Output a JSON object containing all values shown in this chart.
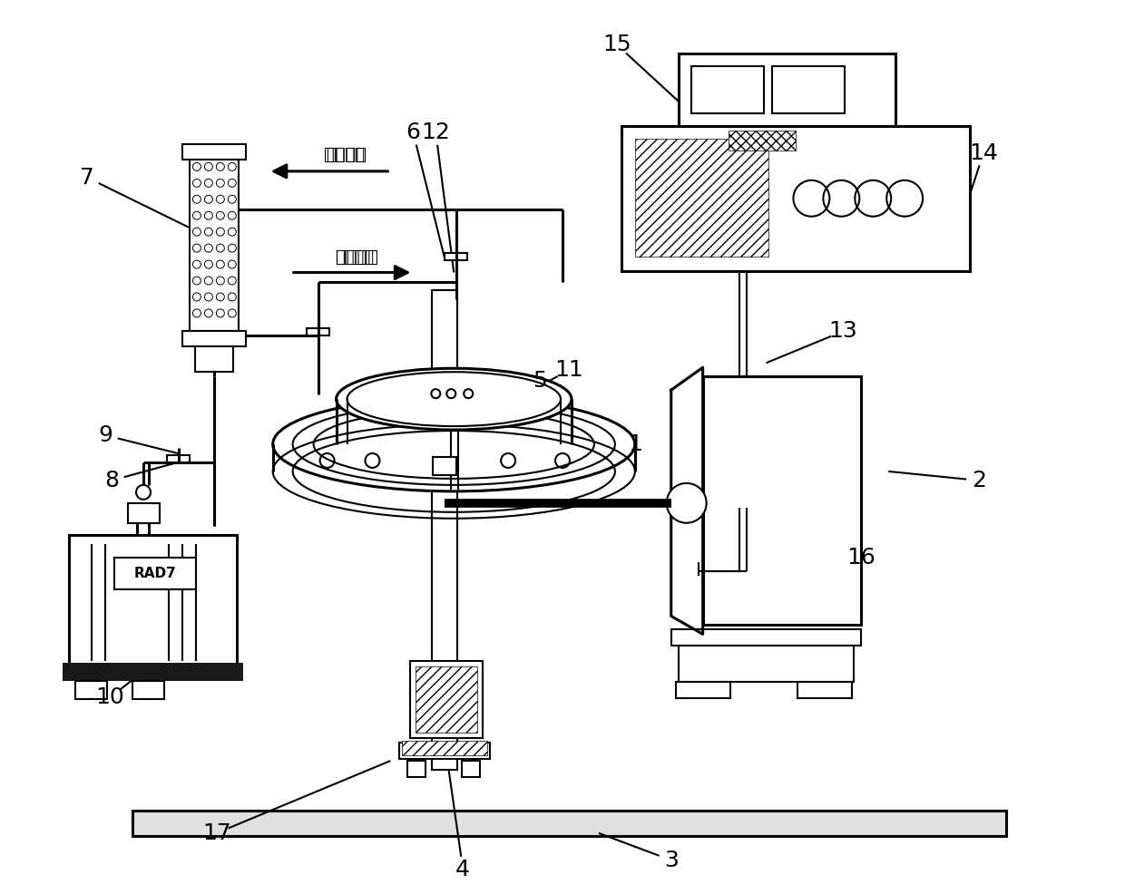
{
  "bg": "#ffffff",
  "lc": "#000000",
  "fig_w": 12.4,
  "fig_h": 9.86,
  "dpi": 100,
  "label_fs": 18,
  "text_fs": 13,
  "lw": 1.5,
  "lwt": 2.2,
  "airflow1_text": "气流方向",
  "airflow2_text": "气流方向"
}
